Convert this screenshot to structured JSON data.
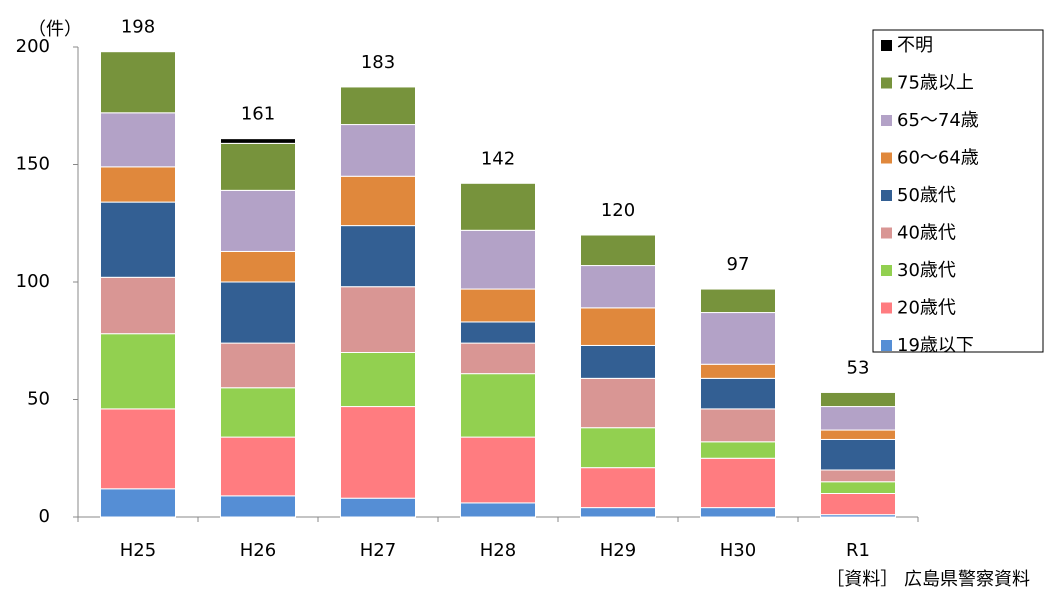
{
  "chart_data": {
    "type": "stacked_bar",
    "unit_label": "（件）",
    "source": "［資料］ 広島県警察資料",
    "categories": [
      "H25",
      "H26",
      "H27",
      "H28",
      "H29",
      "H30",
      "R1"
    ],
    "series": [
      {
        "name": "19歳以下",
        "color": "#558ed5",
        "values": [
          12,
          9,
          8,
          6,
          4,
          4,
          1
        ]
      },
      {
        "name": "20歳代",
        "color": "#ff7c80",
        "values": [
          34,
          25,
          39,
          28,
          17,
          21,
          9
        ]
      },
      {
        "name": "30歳代",
        "color": "#92d050",
        "values": [
          32,
          21,
          23,
          27,
          17,
          7,
          5
        ]
      },
      {
        "name": "40歳代",
        "color": "#d99694",
        "values": [
          24,
          19,
          28,
          13,
          21,
          14,
          5
        ]
      },
      {
        "name": "50歳代",
        "color": "#335f93",
        "values": [
          32,
          26,
          26,
          9,
          14,
          13,
          13
        ]
      },
      {
        "name": "60～64歳",
        "color": "#e0883c",
        "values": [
          15,
          13,
          21,
          14,
          16,
          6,
          4
        ]
      },
      {
        "name": "65～74歳",
        "color": "#b3a2c7",
        "values": [
          23,
          26,
          22,
          25,
          18,
          22,
          10
        ]
      },
      {
        "name": "75歳以上",
        "color": "#77933c",
        "values": [
          26,
          20,
          16,
          20,
          13,
          10,
          6
        ]
      },
      {
        "name": "不明",
        "color": "#000000",
        "values": [
          0,
          2,
          0,
          0,
          0,
          0,
          0
        ]
      }
    ],
    "totals": [
      198,
      161,
      183,
      142,
      120,
      97,
      53
    ],
    "ylim": [
      0,
      200
    ],
    "yticks": [
      0,
      50,
      100,
      150,
      200
    ],
    "grid": false,
    "legend": "upper right"
  }
}
